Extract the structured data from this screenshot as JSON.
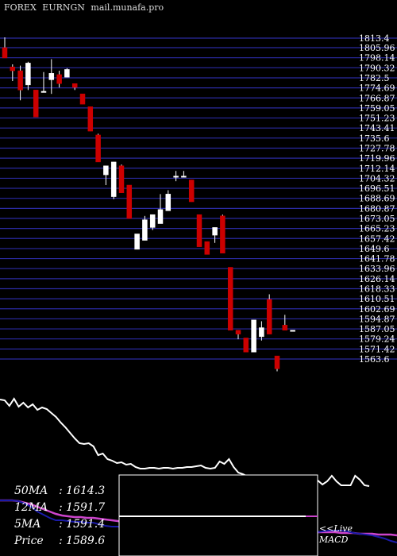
{
  "header": {
    "market": "FOREX",
    "symbol": "EURNGN",
    "site": "mail.munafa.pro"
  },
  "chart_data": {
    "type": "candlestick",
    "y_ticks": [
      "1813.4",
      "1805.96",
      "1798.14",
      "1790.32",
      "1782.5",
      "1774.69",
      "1766.87",
      "1759.05",
      "1751.23",
      "1743.41",
      "1735.6",
      "1727.78",
      "1719.96",
      "1712.14",
      "1704.32",
      "1696.51",
      "1688.69",
      "1680.87",
      "1673.05",
      "1665.23",
      "1657.42",
      "1649.6",
      "1641.78",
      "1633.96",
      "1626.14",
      "1618.33",
      "1610.51",
      "1602.69",
      "1594.87",
      "1587.05",
      "1579.24",
      "1571.42",
      "1563.6"
    ],
    "ylim": [
      1563.6,
      1813.4
    ],
    "candles": [
      {
        "o": 1806.0,
        "h": 1814.0,
        "l": 1800.0,
        "c": 1798.0
      },
      {
        "o": 1791.0,
        "h": 1793.0,
        "l": 1780.0,
        "c": 1788.0
      },
      {
        "o": 1788.0,
        "h": 1792.0,
        "l": 1765.0,
        "c": 1773.0
      },
      {
        "o": 1777.0,
        "h": 1795.0,
        "l": 1773.0,
        "c": 1794.0
      },
      {
        "o": 1773.0,
        "h": 1773.0,
        "l": 1752.0,
        "c": 1752.0
      },
      {
        "o": 1772.0,
        "h": 1787.0,
        "l": 1772.0,
        "c": 1772.0
      },
      {
        "o": 1781.0,
        "h": 1797.0,
        "l": 1770.0,
        "c": 1786.0
      },
      {
        "o": 1785.0,
        "h": 1788.0,
        "l": 1775.0,
        "c": 1778.0
      },
      {
        "o": 1783.0,
        "h": 1790.0,
        "l": 1783.0,
        "c": 1789.0
      },
      {
        "o": 1778.0,
        "h": 1778.0,
        "l": 1773.0,
        "c": 1775.0
      },
      {
        "o": 1770.0,
        "h": 1770.0,
        "l": 1762.0,
        "c": 1762.0
      },
      {
        "o": 1760.0,
        "h": 1760.0,
        "l": 1741.0,
        "c": 1741.0
      },
      {
        "o": 1738.0,
        "h": 1739.0,
        "l": 1717.0,
        "c": 1717.0
      },
      {
        "o": 1707.0,
        "h": 1714.0,
        "l": 1699.0,
        "c": 1714.0
      },
      {
        "o": 1690.0,
        "h": 1717.0,
        "l": 1688.0,
        "c": 1717.0
      },
      {
        "o": 1714.0,
        "h": 1715.0,
        "l": 1693.0,
        "c": 1693.0
      },
      {
        "o": 1699.0,
        "h": 1699.0,
        "l": 1673.0,
        "c": 1673.0
      },
      {
        "o": 1649.0,
        "h": 1661.0,
        "l": 1649.0,
        "c": 1661.0
      },
      {
        "o": 1656.0,
        "h": 1675.0,
        "l": 1656.0,
        "c": 1672.0
      },
      {
        "o": 1666.0,
        "h": 1676.0,
        "l": 1664.0,
        "c": 1676.0
      },
      {
        "o": 1669.0,
        "h": 1692.0,
        "l": 1669.0,
        "c": 1680.0
      },
      {
        "o": 1679.0,
        "h": 1695.0,
        "l": 1679.0,
        "c": 1692.0
      },
      {
        "o": 1706.0,
        "h": 1710.0,
        "l": 1702.0,
        "c": 1706.0
      },
      {
        "o": 1706.0,
        "h": 1710.0,
        "l": 1706.0,
        "c": 1706.0
      },
      {
        "o": 1703.0,
        "h": 1703.0,
        "l": 1686.0,
        "c": 1686.0
      },
      {
        "o": 1676.0,
        "h": 1676.0,
        "l": 1651.0,
        "c": 1651.0
      },
      {
        "o": 1655.0,
        "h": 1655.0,
        "l": 1645.0,
        "c": 1645.0
      },
      {
        "o": 1660.0,
        "h": 1666.0,
        "l": 1654.0,
        "c": 1666.0
      },
      {
        "o": 1675.0,
        "h": 1676.0,
        "l": 1646.0,
        "c": 1646.0
      },
      {
        "o": 1635.0,
        "h": 1635.0,
        "l": 1586.0,
        "c": 1586.0
      },
      {
        "o": 1586.0,
        "h": 1586.0,
        "l": 1579.0,
        "c": 1583.0
      },
      {
        "o": 1580.0,
        "h": 1580.0,
        "l": 1569.0,
        "c": 1569.0
      },
      {
        "o": 1569.0,
        "h": 1594.0,
        "l": 1569.0,
        "c": 1594.0
      },
      {
        "o": 1581.0,
        "h": 1593.0,
        "l": 1578.0,
        "c": 1588.0
      },
      {
        "o": 1610.0,
        "h": 1614.0,
        "l": 1583.0,
        "c": 1583.0
      },
      {
        "o": 1566.0,
        "h": 1566.0,
        "l": 1554.0,
        "c": 1556.0
      },
      {
        "o": 1590.0,
        "h": 1598.0,
        "l": 1586.0,
        "c": 1586.0
      },
      {
        "o": 1586.0,
        "h": 1586.0,
        "l": 1586.0,
        "c": 1586.0
      }
    ],
    "indicator": {
      "white_line": [
        0.92,
        0.91,
        0.84,
        0.93,
        0.83,
        0.88,
        0.82,
        0.86,
        0.79,
        0.82,
        0.8,
        0.75,
        0.7,
        0.63,
        0.57,
        0.5,
        0.43,
        0.37,
        0.36,
        0.37,
        0.33,
        0.22,
        0.24,
        0.17,
        0.15,
        0.12,
        0.13,
        0.1,
        0.11,
        0.07,
        0.05,
        0.05,
        0.06,
        0.06,
        0.05,
        0.06,
        0.06,
        0.05,
        0.06,
        0.06,
        0.07,
        0.07,
        0.08,
        0.09,
        0.06,
        0.05,
        0.06,
        0.14,
        0.11,
        0.17,
        0.07,
        0.0,
        -0.02,
        -0.05,
        -0.07,
        -0.1,
        -0.07,
        -0.09,
        -0.12,
        -0.12,
        -0.12,
        -0.11,
        -0.05,
        -0.09,
        -0.13,
        -0.08,
        -0.09,
        -0.1,
        -0.1,
        -0.15,
        -0.11,
        -0.04,
        -0.11,
        -0.16,
        -0.16,
        -0.16,
        -0.04,
        -0.09,
        -0.16,
        -0.17
      ],
      "blue_line": [
        -0.35,
        -0.35,
        -0.35,
        -0.36,
        -0.39,
        -0.43,
        -0.49,
        -0.53,
        -0.57,
        -0.6,
        -0.6,
        -0.61,
        -0.62,
        -0.62,
        -0.63,
        -0.63,
        -0.65,
        -0.67,
        -0.68,
        -0.68,
        -0.7,
        -0.71,
        -0.7,
        -0.71,
        -0.72,
        -0.72,
        -0.72,
        -0.73,
        -0.73,
        -0.74,
        -0.74,
        -0.74,
        -0.75,
        -0.75,
        -0.76,
        -0.76,
        -0.76,
        -0.76,
        -0.77,
        -0.77,
        -0.77,
        -0.76,
        -0.76,
        -0.75,
        -0.75,
        -0.75,
        -0.74,
        -0.75,
        -0.75,
        -0.75,
        -0.76,
        -0.75,
        -0.74,
        -0.73,
        -0.73,
        -0.73,
        -0.74,
        -0.76,
        -0.77,
        -0.78,
        -0.79,
        -0.81,
        -0.83,
        -0.86,
        -0.88
      ],
      "magenta_line": [
        -0.35,
        -0.35,
        -0.35,
        -0.36,
        -0.38,
        -0.4,
        -0.43,
        -0.46,
        -0.49,
        -0.52,
        -0.54,
        -0.55,
        -0.56,
        -0.56,
        -0.57,
        -0.57,
        -0.58,
        -0.59,
        -0.6,
        -0.61,
        -0.62,
        -0.63,
        -0.64,
        -0.65,
        -0.66,
        -0.67,
        -0.67,
        -0.68,
        -0.69,
        -0.7,
        -0.71,
        -0.71,
        -0.72,
        -0.72,
        -0.73,
        -0.73,
        -0.73,
        -0.73,
        -0.74,
        -0.74,
        -0.74,
        -0.74,
        -0.74,
        -0.74,
        -0.75,
        -0.75,
        -0.75,
        -0.75,
        -0.75,
        -0.75,
        -0.75,
        -0.75,
        -0.75,
        -0.75,
        -0.75,
        -0.76,
        -0.76,
        -0.76,
        -0.77,
        -0.77,
        -0.77,
        -0.78,
        -0.78,
        -0.78,
        -0.79
      ]
    },
    "colors": {
      "up": "#ffffff",
      "down": "#cc0000",
      "gridline": "#2a2aa0",
      "white_line": "#ffffff",
      "blue_line": "#1a1aa8",
      "magenta_line": "#cc44cc"
    }
  },
  "stats": {
    "ma50_label": "50MA",
    "ma50_value": ": 1614.3",
    "ma12_label": "12MA",
    "ma12_value": ": 1591.7",
    "ma5_label": "5MA",
    "ma5_value": ": 1591.4",
    "price_label": "Price",
    "price_value": ": 1589.6"
  },
  "macd_label": {
    "line1": "<<Live",
    "line2": "MACD"
  }
}
